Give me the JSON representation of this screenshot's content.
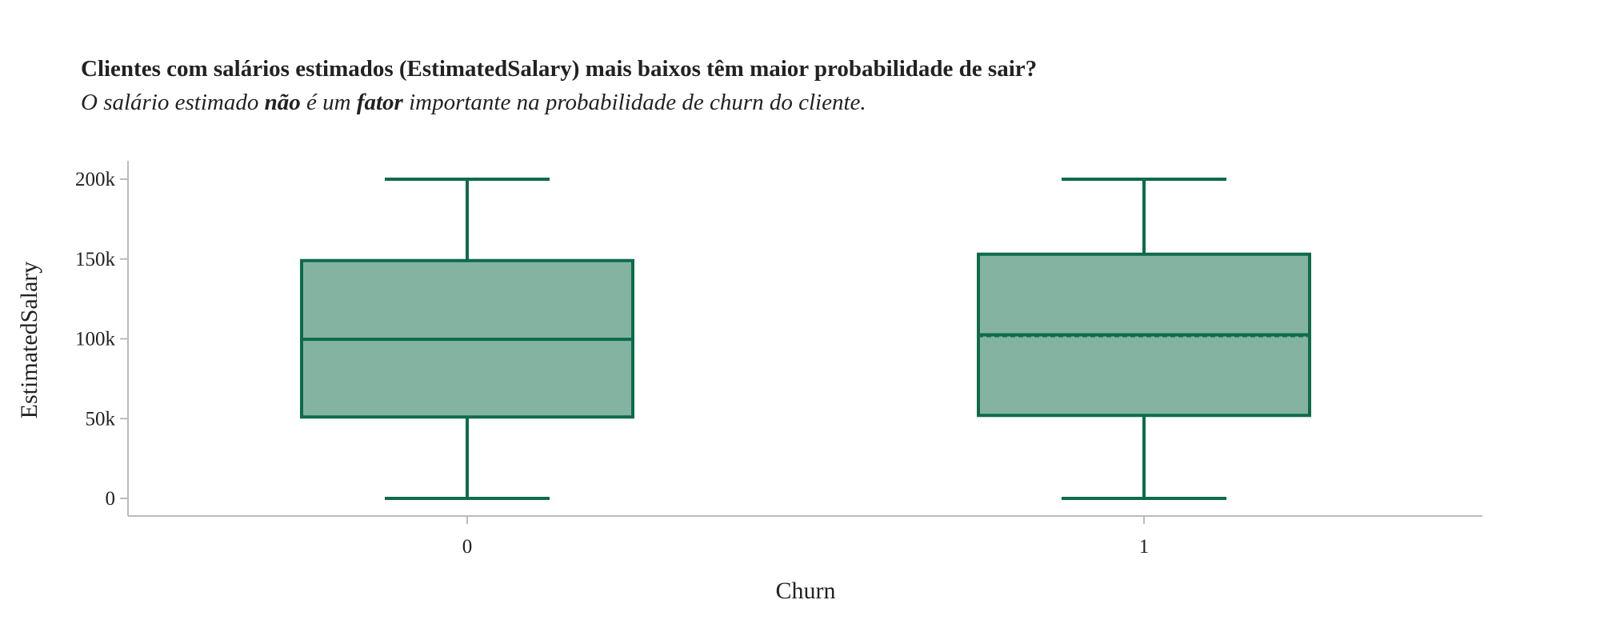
{
  "header": {
    "title": "Clientes com salários estimados (EstimatedSalary) mais baixos têm maior probabilidade de sair?",
    "subtitle_parts": [
      "O salário estimado ",
      "não",
      " é um ",
      "fator",
      " importante na probabilidade de churn do cliente."
    ]
  },
  "colors": {
    "box_fill": "#84b4a1",
    "box_stroke": "#0e6b4c",
    "axis": "#bbbbbb",
    "text": "#222222"
  },
  "chart_data": {
    "type": "box",
    "xlabel": "Churn",
    "ylabel": "EstimatedSalary",
    "ylim": [
      -11000,
      211000
    ],
    "yticks": [
      0,
      50000,
      100000,
      150000,
      200000
    ],
    "ytick_labels": [
      "0",
      "50k",
      "100k",
      "150k",
      "200k"
    ],
    "categories": [
      "0",
      "1"
    ],
    "boxes": [
      {
        "category": "0",
        "min": 0,
        "q1": 51000,
        "median": 99700,
        "mean": 99700,
        "q3": 149000,
        "max": 200000
      },
      {
        "category": "1",
        "min": 0,
        "q1": 52000,
        "median": 102500,
        "mean": 101500,
        "q3": 153000,
        "max": 200000
      }
    ]
  }
}
